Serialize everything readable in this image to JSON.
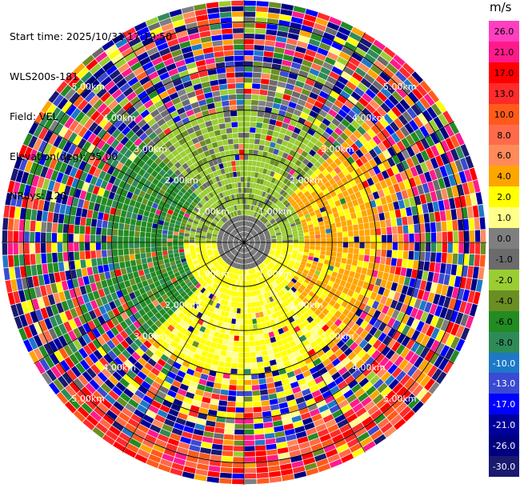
{
  "info": {
    "start_time": "Start time: 2025/10/31 17:19:50",
    "station": "WLS200s-181",
    "field": "Field: VEL",
    "elevation": "Elevation(deg): 35.00",
    "nrays": "NRays: 120"
  },
  "colorbar": {
    "unit": "m/s",
    "ticks": [
      "26.0",
      "21.0",
      "17.0",
      "13.0",
      "10.0",
      "8.0",
      "6.0",
      "4.0",
      "2.0",
      "1.0",
      "0.0",
      "-1.0",
      "-2.0",
      "-4.0",
      "-6.0",
      "-8.0",
      "-10.0",
      "-13.0",
      "-17.0",
      "-21.0",
      "-26.0",
      "-30.0"
    ],
    "colors": [
      "#ff3fbf",
      "#ff1a8c",
      "#ff0000",
      "#ff2a2a",
      "#ff5a1a",
      "#ff6a4a",
      "#ff8a5a",
      "#ffa500",
      "#ffff00",
      "#ffff8a",
      "#7f7f7f",
      "#6b6b6b",
      "#9acd32",
      "#6b8e23",
      "#228b22",
      "#2e8b57",
      "#1e78c8",
      "#3a4ad2",
      "#0000ff",
      "#00009c",
      "#000080",
      "#191970"
    ]
  },
  "chart_data": {
    "type": "heatmap",
    "subtype": "radar PPI (polar)",
    "field": "VEL",
    "unit": "m/s",
    "elevation_deg": 35.0,
    "n_rays": 120,
    "range_rings_km": [
      "1.00km",
      "2.00km",
      "3.00km",
      "4.00km",
      "5.00km"
    ],
    "range_max_km": 5.5,
    "color_scale_min": -30.0,
    "color_scale_max": 26.0,
    "pattern": {
      "inner_near_zero_range_km": 1.4,
      "north_half_inner": "negative (green/gray, about -2 to 0 m/s)",
      "south_half_inner": "positive (yellow, about 1 to 4 m/s)",
      "east_ring": "orange (about 4 to 6 m/s)",
      "west_ring": "green (about -4 to -8 m/s)",
      "outer_noise_start_km": 3.0
    }
  }
}
